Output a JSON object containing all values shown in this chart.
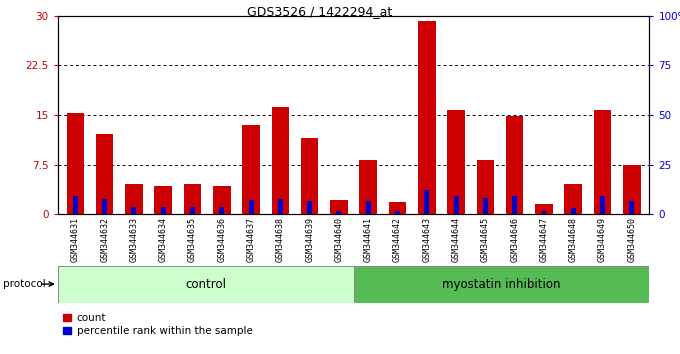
{
  "title": "GDS3526 / 1422294_at",
  "samples": [
    "GSM344631",
    "GSM344632",
    "GSM344633",
    "GSM344634",
    "GSM344635",
    "GSM344636",
    "GSM344637",
    "GSM344638",
    "GSM344639",
    "GSM344640",
    "GSM344641",
    "GSM344642",
    "GSM344643",
    "GSM344644",
    "GSM344645",
    "GSM344646",
    "GSM344647",
    "GSM344648",
    "GSM344649",
    "GSM344650"
  ],
  "count_values": [
    15.3,
    12.2,
    4.5,
    4.2,
    4.5,
    4.3,
    13.5,
    16.2,
    11.5,
    2.2,
    8.2,
    1.8,
    29.2,
    15.8,
    8.2,
    14.8,
    1.5,
    4.5,
    15.8,
    7.5
  ],
  "percentile_scaled": [
    2.7,
    2.25,
    1.14,
    1.05,
    1.14,
    1.05,
    2.16,
    2.25,
    2.04,
    0.54,
    1.95,
    0.45,
    3.6,
    2.76,
    2.46,
    2.7,
    0.45,
    0.96,
    2.7,
    2.04
  ],
  "bar_color_red": "#cc0000",
  "bar_color_blue": "#0000cc",
  "control_bg": "#ccffcc",
  "myostatin_bg": "#55bb55",
  "axis_bg": "#d0d0d0",
  "ylim_left": [
    0,
    30
  ],
  "yticks_left": [
    0,
    7.5,
    15,
    22.5,
    30
  ],
  "ytick_labels_left": [
    "0",
    "7.5",
    "15",
    "22.5",
    "30"
  ],
  "ytick_labels_right": [
    "0",
    "25",
    "50",
    "75",
    "100%"
  ],
  "legend_count": "count",
  "legend_pct": "percentile rank within the sample",
  "protocol_label": "protocol",
  "control_label": "control",
  "myostatin_label": "myostatin inhibition",
  "n_control": 10,
  "n_myostatin": 10
}
